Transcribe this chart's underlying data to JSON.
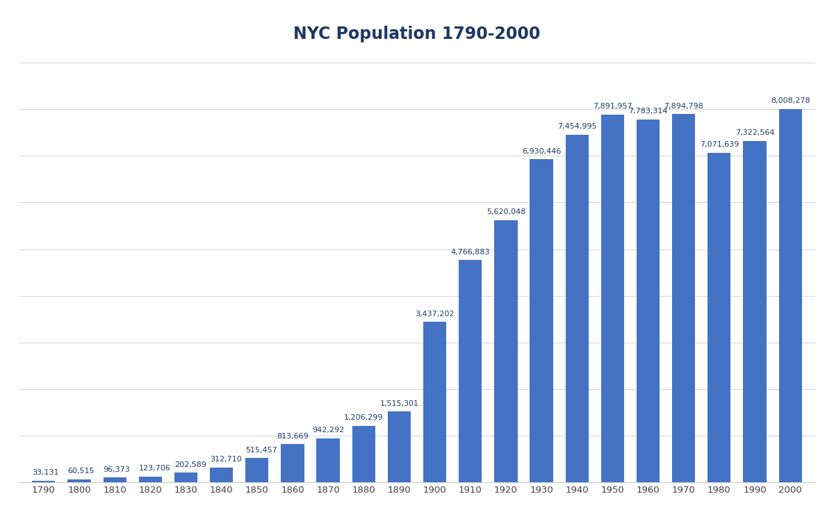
{
  "title": "NYC Population 1790-2000",
  "years": [
    1790,
    1800,
    1810,
    1820,
    1830,
    1840,
    1850,
    1860,
    1870,
    1880,
    1890,
    1900,
    1910,
    1920,
    1930,
    1940,
    1950,
    1960,
    1970,
    1980,
    1990,
    2000
  ],
  "populations": [
    33131,
    60515,
    96373,
    123706,
    202589,
    312710,
    515457,
    813669,
    942292,
    1206299,
    1515301,
    3437202,
    4766883,
    5620048,
    6930446,
    7454995,
    7891957,
    7783314,
    7894798,
    7071639,
    7322564,
    8008278
  ],
  "bar_color": "#4472C4",
  "background_color": "#ffffff",
  "title_color": "#1F3864",
  "label_color": "#1F3864",
  "grid_color": "#d9d9d9",
  "title_fontsize": 17,
  "label_fontsize": 8,
  "tick_fontsize": 9.5,
  "ylim": [
    0,
    9200000
  ],
  "bar_width": 0.65
}
